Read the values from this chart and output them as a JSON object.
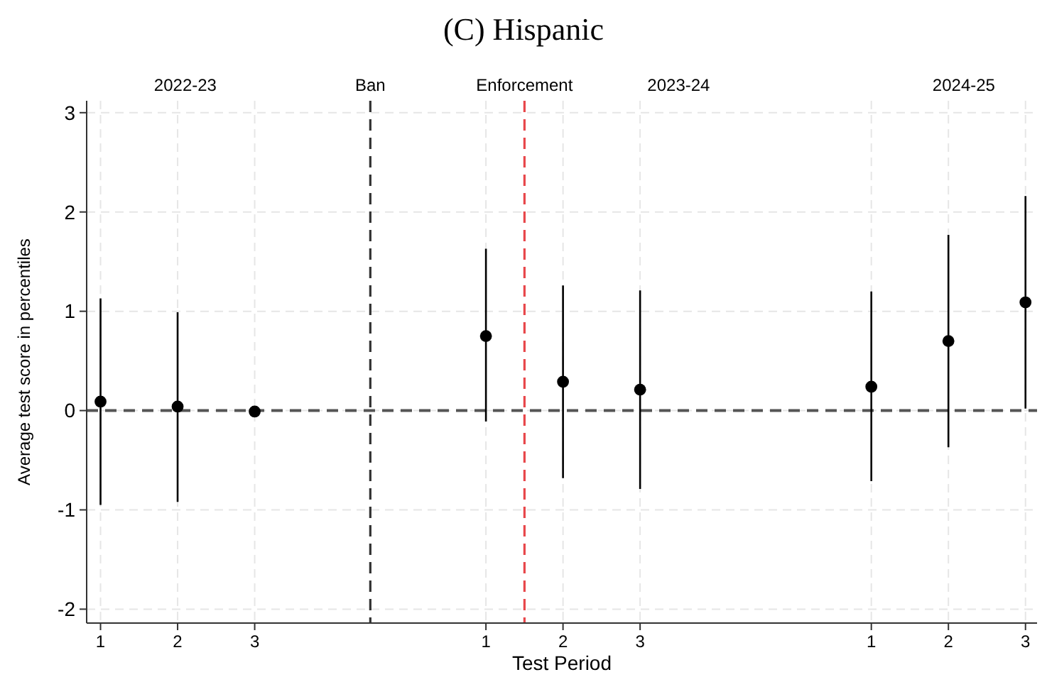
{
  "chart_data": {
    "type": "scatter",
    "title": "(C) Hispanic",
    "xlabel": "Test Period",
    "ylabel": "Average test score in percentiles",
    "categories": [
      "1",
      "2",
      "3",
      null,
      null,
      "1",
      "2",
      "3",
      null,
      null,
      "1",
      "2",
      "3"
    ],
    "series": [
      {
        "color": "#000000",
        "values": [
          0.09,
          0.04,
          -0.01,
          null,
          null,
          0.75,
          0.29,
          0.21,
          null,
          null,
          0.24,
          0.7,
          1.09
        ],
        "errors": [
          [
            -0.95,
            1.13
          ],
          [
            -0.92,
            0.99
          ],
          null,
          null,
          null,
          [
            -0.11,
            1.63
          ],
          [
            -0.68,
            1.26
          ],
          [
            -0.79,
            1.21
          ],
          null,
          null,
          [
            -0.71,
            1.2
          ],
          [
            -0.37,
            1.77
          ],
          [
            0.02,
            2.16
          ]
        ]
      }
    ],
    "ylim": [
      -2.14,
      3.12
    ],
    "yticks": [
      -2,
      -1,
      0,
      1,
      2,
      3
    ],
    "annotations": [
      "2022-23",
      "Ban",
      "Enforcement",
      "2023-24",
      "2024-25"
    ],
    "ref_lines": [
      {
        "axis": "y",
        "value": 0,
        "color": "#555555",
        "line_style": "dashed"
      }
    ],
    "grid": true,
    "marker": "circle"
  }
}
